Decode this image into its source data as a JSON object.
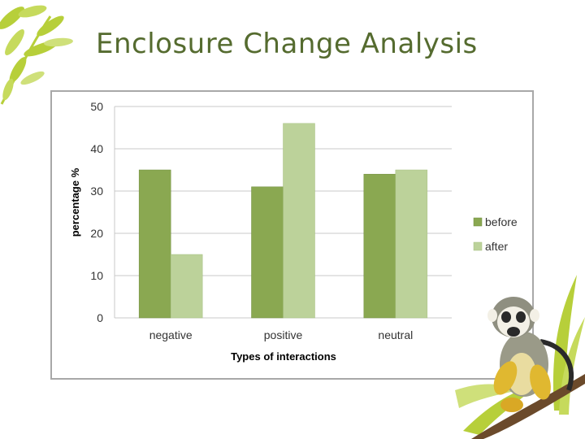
{
  "slide": {
    "title": "Enclosure Change Analysis"
  },
  "colors": {
    "title": "#556b2f",
    "before": "#8aa851",
    "after": "#bcd29a",
    "grid": "#c8c8c8",
    "leaf": "#b7cf3a"
  },
  "decor": {
    "top_left": "leaf-sprig-icon",
    "bottom_right": "squirrel-monkey-on-branch-icon"
  },
  "chart_data": {
    "type": "bar",
    "title": "",
    "xlabel": "Types of interactions",
    "ylabel": "percentage %",
    "categories": [
      "negative",
      "positive",
      "neutral"
    ],
    "series": [
      {
        "name": "before",
        "values": [
          35,
          31,
          34
        ]
      },
      {
        "name": "after",
        "values": [
          15,
          46,
          35
        ]
      }
    ],
    "ylim": [
      0,
      50
    ],
    "yticks": [
      0,
      10,
      20,
      30,
      40,
      50
    ],
    "grid": true,
    "legend": "right"
  }
}
